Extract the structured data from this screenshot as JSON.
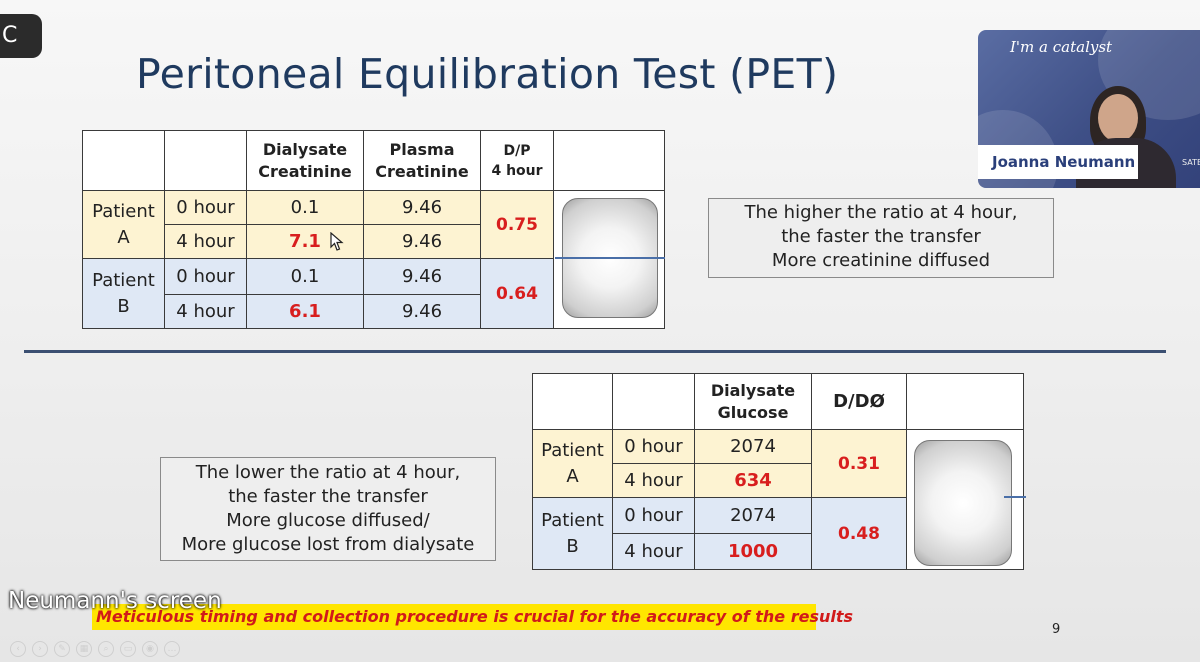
{
  "cc_badge": "C",
  "title": "Peritoneal Equilibration Test (PET)",
  "table1": {
    "headers": [
      "",
      "",
      "Dialysate\nCreatinine",
      "Plasma\nCreatinine",
      "D/P\n4 hour",
      ""
    ],
    "patient_a": "Patient\nA",
    "patient_b": "Patient\nB",
    "hour0": "0 hour",
    "hour4": "4 hour",
    "a0_dialysate": "0.1",
    "a0_plasma": "9.46",
    "a4_dialysate": "7.1",
    "a4_plasma": "9.46",
    "a_ratio": "0.75",
    "b0_dialysate": "0.1",
    "b0_plasma": "9.46",
    "b4_dialysate": "6.1",
    "b4_plasma": "9.46",
    "b_ratio": "0.64"
  },
  "note1": [
    "The higher the ratio at 4 hour,",
    "the faster the transfer",
    "More creatinine diffused"
  ],
  "table2": {
    "headers": [
      "",
      "",
      "Dialysate\nGlucose",
      "D/DØ",
      ""
    ],
    "patient_a": "Patient\nA",
    "patient_b": "Patient\nB",
    "hour0": "0 hour",
    "hour4": "4 hour",
    "a0_glucose": "2074",
    "a4_glucose": "634",
    "a_ratio": "0.31",
    "b0_glucose": "2074",
    "b4_glucose": "1000",
    "b_ratio": "0.48"
  },
  "note2": [
    "The lower the ratio at 4 hour,",
    "the faster the transfer",
    "More glucose diffused/",
    "More glucose lost from dialysate"
  ],
  "video": {
    "tagline": "I'm a catalyst",
    "participant_name": "Joanna Neumann",
    "brand_fragment": "SATE"
  },
  "screen_share_label": "Neumann's screen",
  "footer_note": "Meticulous timing and collection procedure is crucial for the accuracy of the results",
  "page_number": "9",
  "colors": {
    "title": "#1f3a5f",
    "patient_a_row": "#fdf3d2",
    "patient_b_row": "#dfe8f5",
    "highlight_value": "#d81e1e",
    "footer_highlight": "#ffe600",
    "divider": "#3b4f72"
  },
  "toolbar_icons": [
    "prev-icon",
    "next-icon",
    "pen-icon",
    "slides-icon",
    "zoom-icon",
    "subtitles-icon",
    "camera-icon",
    "more-icon"
  ]
}
